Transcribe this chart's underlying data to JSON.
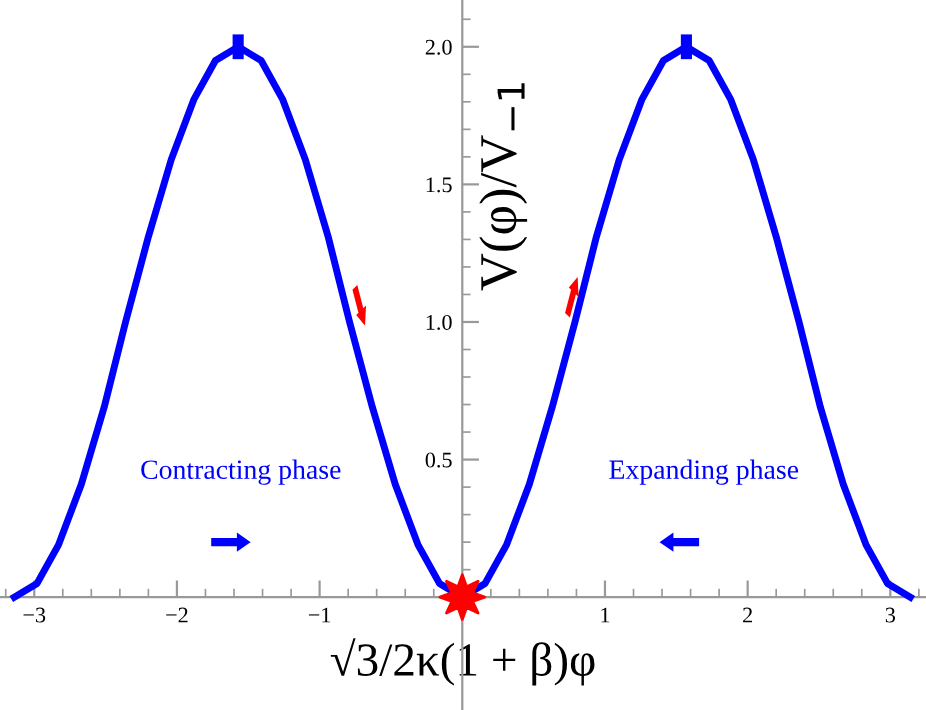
{
  "chart_data": {
    "type": "line",
    "xlabel": "√3/2κ(1 + β)φ",
    "ylabel": "V(φ)/V$_{−1}$",
    "annotations": [
      "Contracting phase",
      "Expanding phase"
    ],
    "series": [
      {
        "color": "#0000ff",
        "x": [
          -3.14,
          -2.98,
          -2.83,
          -2.67,
          -2.51,
          -2.36,
          -2.2,
          -2.04,
          -1.88,
          -1.73,
          -1.57,
          -1.41,
          -1.26,
          -1.1,
          -0.94,
          -0.79,
          -0.63,
          -0.47,
          -0.31,
          -0.16,
          0,
          0.16,
          0.31,
          0.47,
          0.63,
          0.79,
          0.94,
          1.1,
          1.26,
          1.41,
          1.57,
          1.73,
          1.88,
          2.04,
          2.2,
          2.36,
          2.51,
          2.67,
          2.83,
          2.98,
          3.14
        ],
        "values": [
          0,
          0.05,
          0.19,
          0.41,
          0.69,
          1.0,
          1.31,
          1.59,
          1.81,
          1.95,
          2.0,
          1.95,
          1.81,
          1.59,
          1.31,
          1.0,
          0.69,
          0.41,
          0.19,
          0.05,
          0,
          0.05,
          0.19,
          0.41,
          0.69,
          1.0,
          1.31,
          1.59,
          1.81,
          1.95,
          2.0,
          1.95,
          1.81,
          1.59,
          1.31,
          1.0,
          0.69,
          0.41,
          0.19,
          0.05,
          0
        ]
      },
      {
        "type": "scatter",
        "marker": "star",
        "color": "#ff0000",
        "x": [
          0
        ],
        "values": [
          0
        ]
      }
    ],
    "xlim": [
      -3.24,
      3.25
    ],
    "ylim": [
      -0.41,
      2.17
    ],
    "xticks": [
      {
        "value": -3,
        "label": "−3"
      },
      {
        "value": -2,
        "label": "−2"
      },
      {
        "value": -1,
        "label": "−1"
      },
      {
        "value": 1,
        "label": "1"
      },
      {
        "value": 2,
        "label": "2"
      },
      {
        "value": 3,
        "label": "3"
      }
    ],
    "yticks": [
      {
        "value": 0.5,
        "label": "0.5"
      },
      {
        "value": 1.0,
        "label": "1.0"
      },
      {
        "value": 1.5,
        "label": "1.5"
      },
      {
        "value": 2.0,
        "label": "2.0"
      }
    ]
  }
}
